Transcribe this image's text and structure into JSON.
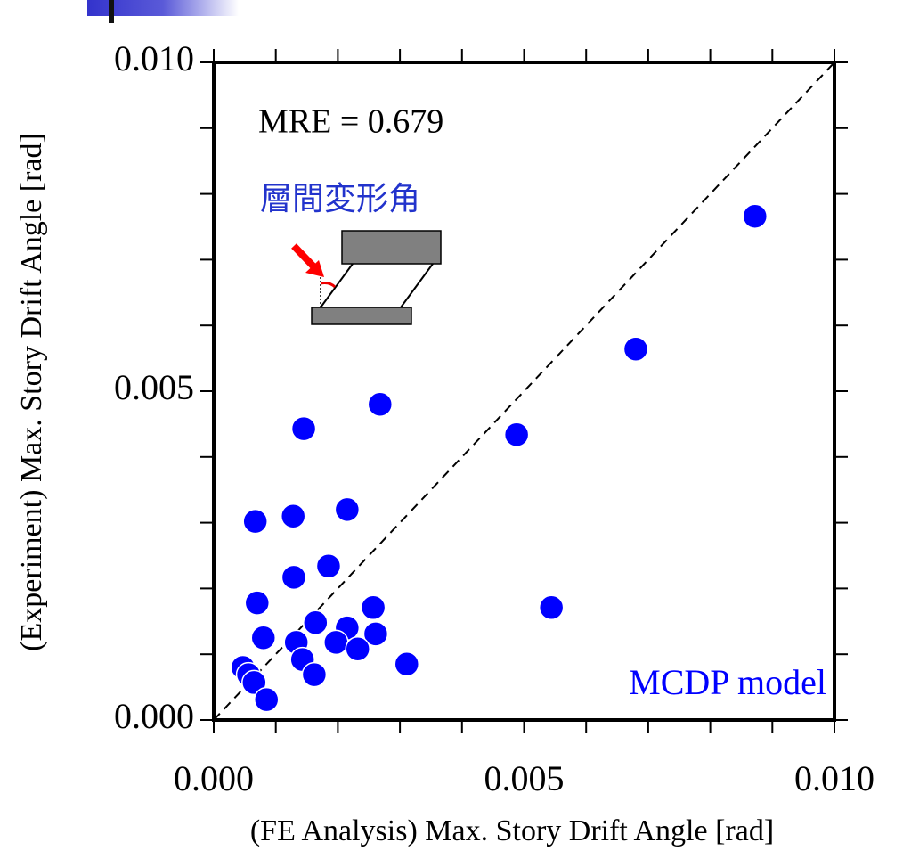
{
  "chart_data": {
    "type": "scatter",
    "xlabel": "(FE Analysis) Max. Story Drift Angle [rad]",
    "ylabel": "(Experiment) Max. Story Drift Angle [rad]",
    "annotations": [
      "MRE = 0.679",
      "層間変形角",
      "MCDP model"
    ],
    "color": "#0000ff",
    "x": [
      0.00872,
      0.0068,
      0.00488,
      0.00268,
      0.00145,
      0.00215,
      0.00128,
      0.00067,
      0.00185,
      0.00129,
      0.0007,
      0.00544,
      0.00257,
      0.00164,
      0.00215,
      0.00261,
      0.0008,
      0.00133,
      0.00197,
      0.00232,
      0.00143,
      0.00311,
      0.00047,
      0.00056,
      0.00162,
      0.00065,
      0.00085
    ],
    "values": [
      0.00766,
      0.00564,
      0.00434,
      0.0048,
      0.00443,
      0.0032,
      0.0031,
      0.00302,
      0.00234,
      0.00217,
      0.00178,
      0.00171,
      0.00171,
      0.00148,
      0.0014,
      0.00131,
      0.00125,
      0.00118,
      0.00118,
      0.00108,
      0.00092,
      0.00085,
      0.0008,
      0.00069,
      0.00069,
      0.00057,
      0.00031
    ],
    "xlim": [
      0,
      0.01
    ],
    "ylim": [
      0,
      0.01
    ],
    "xticks": [
      {
        "value": 0,
        "label": "0.000"
      },
      {
        "value": 0.005,
        "label": "0.005"
      },
      {
        "value": 0.01,
        "label": "0.010"
      }
    ],
    "yticks": [
      {
        "value": 0,
        "label": "0.000"
      },
      {
        "value": 0.005,
        "label": "0.005"
      },
      {
        "value": 0.01,
        "label": "0.010"
      }
    ],
    "xminorticks": [
      0.001,
      0.002,
      0.003,
      0.004,
      0.006,
      0.007,
      0.008,
      0.009
    ],
    "yminorticks": [
      0.001,
      0.002,
      0.003,
      0.004,
      0.006,
      0.007,
      0.008,
      0.009
    ],
    "diagonal": true
  }
}
